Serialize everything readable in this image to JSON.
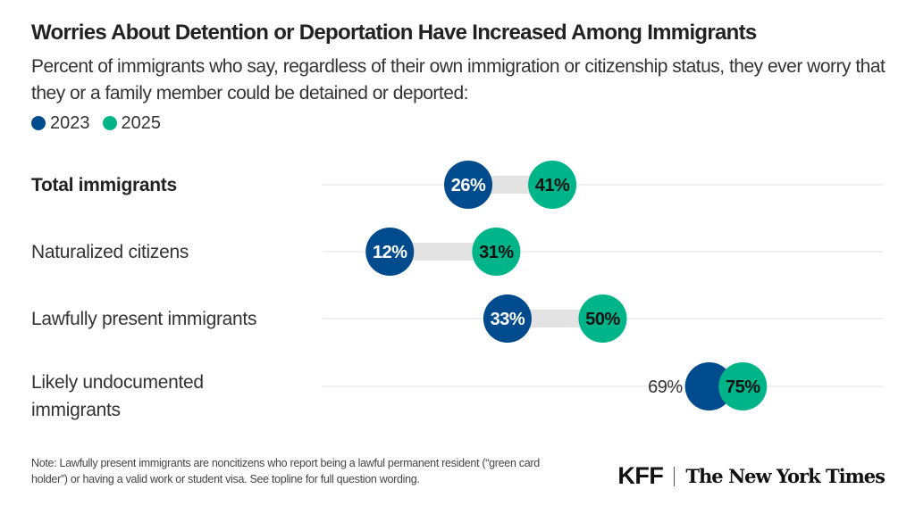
{
  "chart_data": {
    "type": "dumbbell",
    "title": "Worries About Detention or Deportation Have Increased Among Immigrants",
    "subtitle": "Percent of immigrants who say, regardless of their own immigration or citizenship status, they ever worry that they or a family member could be detained or deported:",
    "xlim": [
      0,
      100
    ],
    "grid": true,
    "legend_placement": "top-left",
    "categories": [
      "Total immigrants",
      "Naturalized citizens",
      "Lawfully present immigrants",
      "Likely undocumented immigrants"
    ],
    "series": [
      {
        "name": "2023",
        "color": "#004b8d",
        "values": [
          26,
          12,
          33,
          69
        ],
        "labels": [
          "26%",
          "12%",
          "33%",
          "69%"
        ]
      },
      {
        "name": "2025",
        "color": "#00b48a",
        "values": [
          41,
          31,
          50,
          75
        ],
        "labels": [
          "41%",
          "31%",
          "50%",
          "75%"
        ]
      }
    ]
  },
  "note": "Note: Lawfully present immigrants are noncitizens who report being a lawful permanent resident (“green card holder”) or having a valid work or student visa. See topline for full question wording.",
  "logos": {
    "kff": "KFF",
    "nyt": "The New York Times"
  }
}
